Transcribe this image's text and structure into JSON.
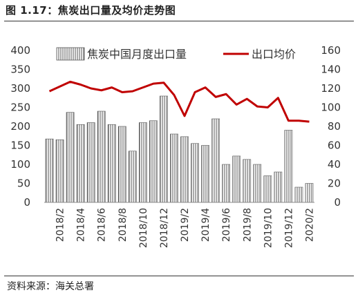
{
  "figure": {
    "title": "图 1.17：焦炭出口量及均价走势图",
    "source": "资料来源：海关总署"
  },
  "chart_data": {
    "type": "bar",
    "x": [
      "2018/1",
      "2018/2",
      "2018/3",
      "2018/4",
      "2018/5",
      "2018/6",
      "2018/7",
      "2018/8",
      "2018/9",
      "2018/10",
      "2018/11",
      "2018/12",
      "2019/1",
      "2019/2",
      "2019/3",
      "2019/4",
      "2019/5",
      "2019/6",
      "2019/7",
      "2019/8",
      "2019/9",
      "2019/10",
      "2019/11",
      "2019/12",
      "2020/1",
      "2020/2"
    ],
    "x_tick_labels": [
      "2018/2",
      "2018/4",
      "2018/6",
      "2018/8",
      "2018/10",
      "2018/12",
      "2019/2",
      "2019/4",
      "2019/6",
      "2019/8",
      "2019/10",
      "2019/12",
      "2020/2"
    ],
    "series": [
      {
        "name": "焦炭中国月度出口量",
        "type": "bar",
        "axis": "left",
        "color": "#555555",
        "values": [
          167,
          165,
          237,
          205,
          210,
          240,
          205,
          200,
          135,
          210,
          215,
          280,
          180,
          173,
          155,
          150,
          220,
          100,
          122,
          113,
          100,
          70,
          80,
          190,
          40,
          50
        ]
      },
      {
        "name": "出口均价",
        "type": "line",
        "axis": "right",
        "color": "#c00000",
        "values": [
          117,
          122,
          127,
          124,
          120,
          118,
          121,
          116,
          117,
          121,
          125,
          126,
          113,
          91,
          116,
          121,
          111,
          114,
          103,
          109,
          101,
          100,
          110,
          86,
          86,
          85
        ]
      }
    ],
    "y_left": {
      "min": 0,
      "max": 400,
      "ticks": [
        0,
        50,
        100,
        150,
        200,
        250,
        300,
        350,
        400
      ]
    },
    "y_right": {
      "min": 0,
      "max": 160,
      "ticks": [
        0,
        20,
        40,
        60,
        80,
        100,
        120,
        140,
        160
      ]
    },
    "grid": false,
    "legend_position": "top"
  }
}
